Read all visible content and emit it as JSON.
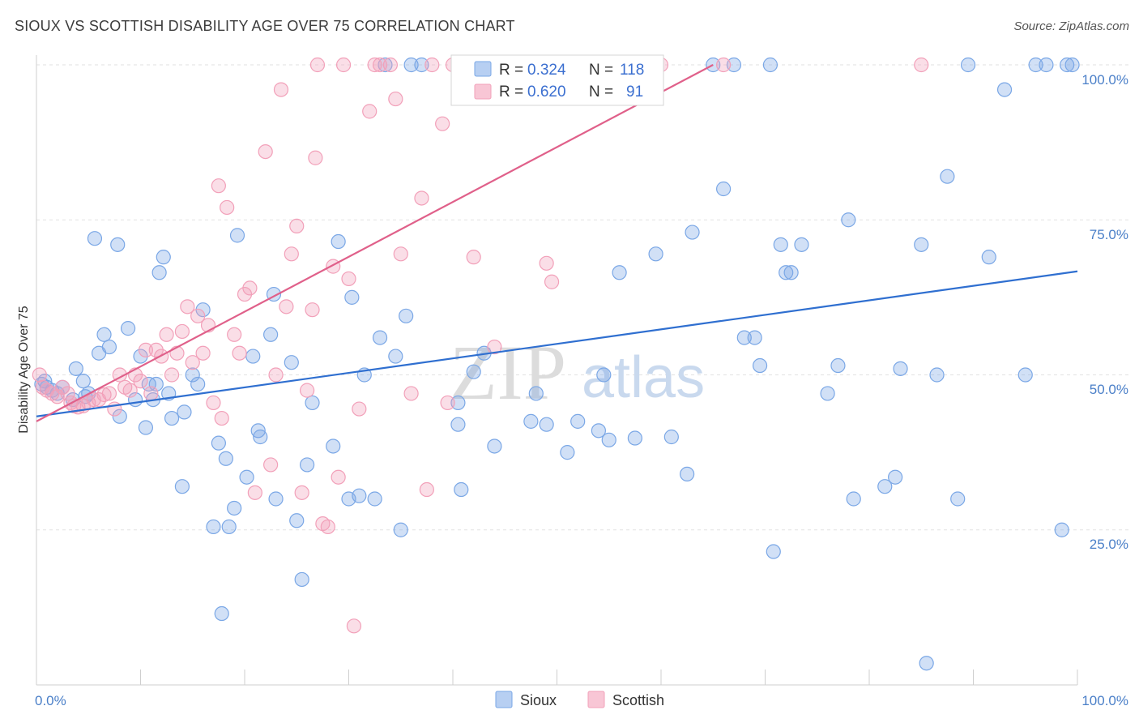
{
  "header": {
    "title": "SIOUX VS SCOTTISH DISABILITY AGE OVER 75 CORRELATION CHART",
    "source": "Source: ZipAtlas.com"
  },
  "watermark": {
    "zip": "ZIP",
    "atlas": "atlas"
  },
  "legend_box": {
    "rows": [
      {
        "r_label": "R =",
        "r_value": "0.324",
        "n_label": "N =",
        "n_value": "118",
        "color": "#7aa7e6"
      },
      {
        "r_label": "R =",
        "r_value": "0.620",
        "n_label": "N =",
        "n_value": "91",
        "color": "#f2a0b9"
      }
    ]
  },
  "chart_data": {
    "type": "scatter",
    "ylabel": "Disability Age Over 75",
    "xlim": [
      0,
      100
    ],
    "ylim": [
      0,
      100
    ],
    "x_tick_labels": [
      "0.0%",
      "100.0%"
    ],
    "y_tick_labels": [
      "25.0%",
      "50.0%",
      "75.0%",
      "100.0%"
    ],
    "y_ticks": [
      25,
      50,
      75,
      100
    ],
    "grid": true,
    "legend_placement": "bottom-center",
    "series": [
      {
        "name": "Sioux",
        "color": "#7aa7e6",
        "line_color": "#2f6fd0",
        "trend": {
          "x": [
            0,
            100
          ],
          "y": [
            43.3,
            66.7
          ]
        },
        "points": [
          [
            0.5,
            48.5
          ],
          [
            0.8,
            49
          ],
          [
            1,
            48
          ],
          [
            1.5,
            47.5
          ],
          [
            2,
            47
          ],
          [
            2.5,
            48
          ],
          [
            3.5,
            46
          ],
          [
            4.5,
            49
          ],
          [
            4.7,
            46.5
          ],
          [
            5,
            47
          ],
          [
            3.8,
            51
          ],
          [
            5.6,
            72
          ],
          [
            6,
            53.5
          ],
          [
            6.5,
            56.5
          ],
          [
            7,
            54.5
          ],
          [
            7.8,
            71
          ],
          [
            8,
            43.3
          ],
          [
            8.8,
            57.5
          ],
          [
            9.5,
            46
          ],
          [
            10,
            53
          ],
          [
            10.5,
            41.5
          ],
          [
            10.8,
            48.5
          ],
          [
            11.2,
            46
          ],
          [
            11.5,
            48.5
          ],
          [
            11.8,
            66.5
          ],
          [
            12.2,
            69
          ],
          [
            12.7,
            47
          ],
          [
            13,
            43
          ],
          [
            14,
            32
          ],
          [
            14.2,
            44
          ],
          [
            15,
            50
          ],
          [
            15.5,
            48.5
          ],
          [
            16,
            60.5
          ],
          [
            17,
            25.5
          ],
          [
            17.5,
            39
          ],
          [
            17.8,
            11.5
          ],
          [
            18.2,
            36.5
          ],
          [
            18.5,
            25.5
          ],
          [
            19,
            28.5
          ],
          [
            19.3,
            72.5
          ],
          [
            20.2,
            33.5
          ],
          [
            20.8,
            53
          ],
          [
            21.3,
            41
          ],
          [
            21.5,
            40
          ],
          [
            22.5,
            56.5
          ],
          [
            22.8,
            63
          ],
          [
            23,
            30
          ],
          [
            24.5,
            52
          ],
          [
            25,
            26.5
          ],
          [
            25.5,
            17
          ],
          [
            26,
            35.5
          ],
          [
            26.5,
            45.5
          ],
          [
            28.5,
            38.5
          ],
          [
            29,
            71.5
          ],
          [
            30,
            30
          ],
          [
            30.3,
            62.5
          ],
          [
            31,
            30.5
          ],
          [
            31.5,
            50
          ],
          [
            32.5,
            30
          ],
          [
            33,
            56
          ],
          [
            33.5,
            100
          ],
          [
            34.5,
            53
          ],
          [
            35,
            25
          ],
          [
            35.5,
            59.5
          ],
          [
            36,
            100
          ],
          [
            37,
            100
          ],
          [
            40.5,
            45.5
          ],
          [
            40.5,
            42
          ],
          [
            40.8,
            31.5
          ],
          [
            42,
            50.5
          ],
          [
            43,
            53.5
          ],
          [
            44,
            38.5
          ],
          [
            45,
            100
          ],
          [
            47.5,
            42.5
          ],
          [
            48,
            47
          ],
          [
            49,
            42
          ],
          [
            51,
            37.5
          ],
          [
            52,
            42.5
          ],
          [
            54,
            41
          ],
          [
            54.5,
            50
          ],
          [
            55,
            39.5
          ],
          [
            56,
            66.5
          ],
          [
            57.5,
            39.8
          ],
          [
            59.5,
            69.5
          ],
          [
            61,
            40
          ],
          [
            62.5,
            34
          ],
          [
            63,
            73
          ],
          [
            65,
            100
          ],
          [
            66,
            80
          ],
          [
            67,
            100
          ],
          [
            68,
            56
          ],
          [
            69,
            56
          ],
          [
            69.5,
            51.5
          ],
          [
            70.5,
            100
          ],
          [
            70.8,
            21.5
          ],
          [
            71.5,
            71
          ],
          [
            72,
            66.5
          ],
          [
            72.5,
            66.5
          ],
          [
            73.5,
            71
          ],
          [
            76,
            47
          ],
          [
            77,
            51.5
          ],
          [
            78,
            75
          ],
          [
            78.5,
            30
          ],
          [
            81.5,
            32
          ],
          [
            82.5,
            33.5
          ],
          [
            83,
            51
          ],
          [
            85,
            71
          ],
          [
            85.5,
            3.5
          ],
          [
            86.5,
            50
          ],
          [
            87.5,
            82
          ],
          [
            88.5,
            30
          ],
          [
            89.5,
            100
          ],
          [
            91.5,
            69
          ],
          [
            93,
            96
          ],
          [
            95,
            50
          ],
          [
            96,
            100
          ],
          [
            97,
            100
          ],
          [
            98.5,
            25
          ],
          [
            99,
            100
          ],
          [
            99.5,
            100
          ]
        ]
      },
      {
        "name": "Scottish",
        "color": "#f2a0b9",
        "line_color": "#e0608a",
        "trend": {
          "x": [
            0,
            65
          ],
          "y": [
            42.5,
            100
          ]
        },
        "points": [
          [
            0.3,
            50
          ],
          [
            0.6,
            48
          ],
          [
            1,
            47.5
          ],
          [
            1.5,
            47
          ],
          [
            2,
            46.5
          ],
          [
            2.5,
            48
          ],
          [
            3,
            47
          ],
          [
            3.3,
            45.5
          ],
          [
            3.6,
            45
          ],
          [
            4,
            44.8
          ],
          [
            4.5,
            45
          ],
          [
            5,
            45.5
          ],
          [
            5.5,
            46
          ],
          [
            6,
            46
          ],
          [
            6.5,
            46.8
          ],
          [
            7,
            47
          ],
          [
            7.5,
            44.5
          ],
          [
            8,
            50
          ],
          [
            8.5,
            48
          ],
          [
            9,
            47.5
          ],
          [
            9.5,
            50
          ],
          [
            10,
            49
          ],
          [
            10.5,
            54
          ],
          [
            11,
            47
          ],
          [
            11.5,
            54
          ],
          [
            12,
            53
          ],
          [
            12.5,
            56.5
          ],
          [
            13,
            50
          ],
          [
            13.5,
            53.5
          ],
          [
            14,
            57
          ],
          [
            14.5,
            61
          ],
          [
            15,
            52
          ],
          [
            15.5,
            59.5
          ],
          [
            16,
            53.5
          ],
          [
            16.5,
            58
          ],
          [
            17,
            45.5
          ],
          [
            17.5,
            80.5
          ],
          [
            17.8,
            43
          ],
          [
            18.3,
            77
          ],
          [
            19,
            56.5
          ],
          [
            19.5,
            53.5
          ],
          [
            20,
            63
          ],
          [
            20.5,
            64
          ],
          [
            21,
            31
          ],
          [
            22,
            86
          ],
          [
            22.5,
            35.5
          ],
          [
            23,
            50
          ],
          [
            23.5,
            96
          ],
          [
            24,
            61
          ],
          [
            24.5,
            69.5
          ],
          [
            25,
            74
          ],
          [
            25.5,
            31
          ],
          [
            26,
            47.5
          ],
          [
            26.5,
            60.5
          ],
          [
            26.8,
            85
          ],
          [
            27,
            100
          ],
          [
            27.5,
            26
          ],
          [
            28,
            25.5
          ],
          [
            28.5,
            67.5
          ],
          [
            29,
            33.5
          ],
          [
            29.5,
            100
          ],
          [
            30,
            65.5
          ],
          [
            31,
            44.5
          ],
          [
            32,
            92.5
          ],
          [
            32.5,
            100
          ],
          [
            33,
            100
          ],
          [
            34,
            100
          ],
          [
            34.5,
            94.5
          ],
          [
            35,
            69.5
          ],
          [
            36,
            47
          ],
          [
            37,
            78.5
          ],
          [
            37.5,
            31.5
          ],
          [
            38,
            100
          ],
          [
            39,
            90.5
          ],
          [
            39.5,
            45.5
          ],
          [
            30.5,
            9.5
          ],
          [
            40,
            100
          ],
          [
            41,
            100
          ],
          [
            42,
            69
          ],
          [
            44,
            54.5
          ],
          [
            46,
            100
          ],
          [
            47,
            100
          ],
          [
            49,
            68
          ],
          [
            49.5,
            65
          ],
          [
            52,
            100
          ],
          [
            56,
            100
          ],
          [
            60,
            100
          ],
          [
            66,
            100
          ],
          [
            85,
            100
          ],
          [
            48,
            100
          ],
          [
            50,
            100
          ]
        ]
      }
    ]
  }
}
